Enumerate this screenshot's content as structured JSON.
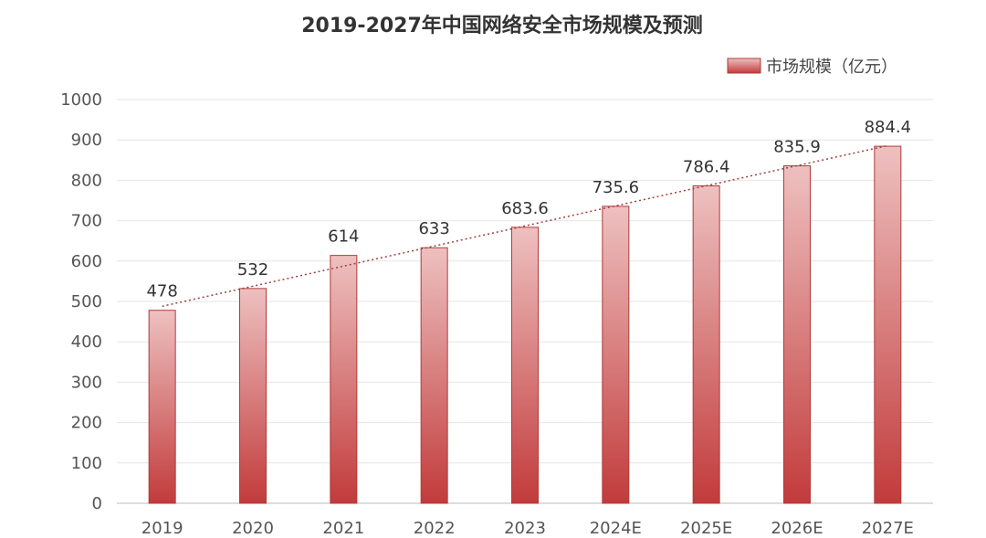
{
  "chart_data": {
    "type": "bar",
    "title": "2019-2027年中国网络安全市场规模及预测",
    "categories": [
      "2019",
      "2020",
      "2021",
      "2022",
      "2023",
      "2024E",
      "2025E",
      "2026E",
      "2027E"
    ],
    "series": [
      {
        "name": "市场规模（亿元）",
        "values": [
          478,
          532,
          614,
          633,
          683.6,
          735.6,
          786.4,
          835.9,
          884.4
        ],
        "labels": [
          "478",
          "532",
          "614",
          "633",
          "683.6",
          "735.6",
          "786.4",
          "835.9",
          "884.4"
        ]
      }
    ],
    "ylim": [
      0,
      1000
    ],
    "yticks": [
      0,
      100,
      200,
      300,
      400,
      500,
      600,
      700,
      800,
      900,
      1000
    ],
    "grid": true,
    "legend": "top-right",
    "trendline": "linear, dotted"
  },
  "colors": {
    "bar_top": "#eec0c0",
    "bar_bottom": "#c23b3b",
    "bar_border": "#b23a3a",
    "trend": "#a04040",
    "grid": "#e6e6e6",
    "axis": "#bbbbbb"
  }
}
